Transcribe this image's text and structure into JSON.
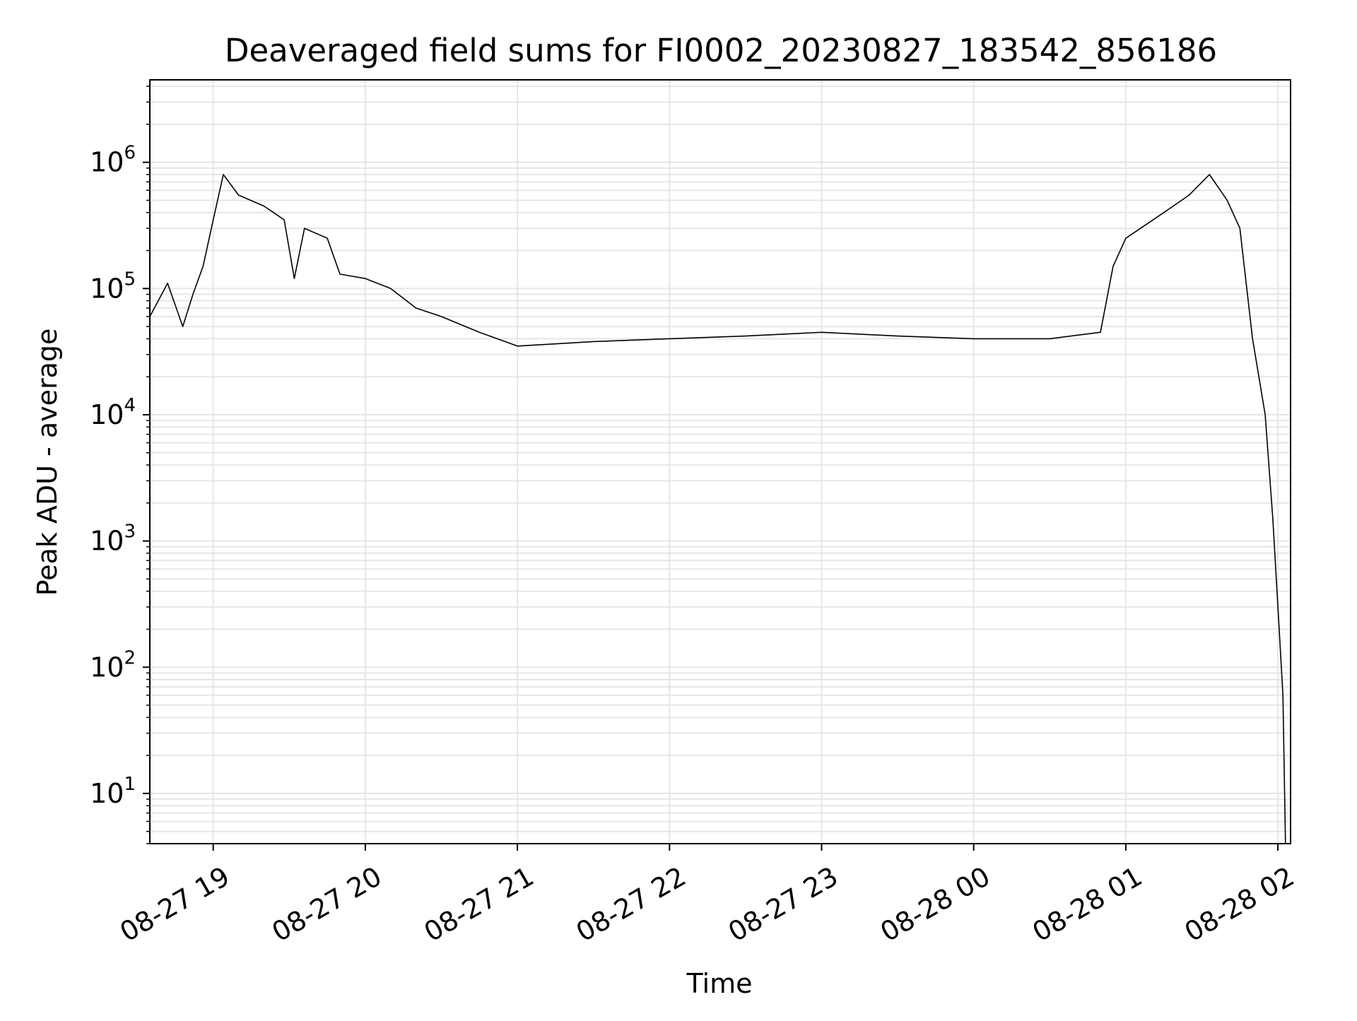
{
  "chart_data": {
    "type": "line",
    "title": "Deaveraged field sums for FI0002_20230827_183542_856186",
    "xlabel": "Time",
    "ylabel": "Peak ADU - average",
    "yscale": "log",
    "ylim": [
      4,
      4500000
    ],
    "xlim": [
      "08-27 18:35",
      "08-28 02:05"
    ],
    "grid": true,
    "line_color": "#000000",
    "grid_color": "#e6e6e6",
    "x_ticks": [
      {
        "label": "08-27 19",
        "value": "08-27 19:00"
      },
      {
        "label": "08-27 20",
        "value": "08-27 20:00"
      },
      {
        "label": "08-27 21",
        "value": "08-27 21:00"
      },
      {
        "label": "08-27 22",
        "value": "08-27 22:00"
      },
      {
        "label": "08-27 23",
        "value": "08-27 23:00"
      },
      {
        "label": "08-28 00",
        "value": "08-28 00:00"
      },
      {
        "label": "08-28 01",
        "value": "08-28 01:00"
      },
      {
        "label": "08-28 02",
        "value": "08-28 02:00"
      }
    ],
    "y_ticks": [
      {
        "base": "10",
        "exp": "1",
        "value": 10
      },
      {
        "base": "10",
        "exp": "2",
        "value": 100
      },
      {
        "base": "10",
        "exp": "3",
        "value": 1000
      },
      {
        "base": "10",
        "exp": "4",
        "value": 10000
      },
      {
        "base": "10",
        "exp": "5",
        "value": 100000
      },
      {
        "base": "10",
        "exp": "6",
        "value": 1000000
      }
    ],
    "series": [
      {
        "values": [
          [
            "08-27 18:35",
            60000
          ],
          [
            "08-27 18:42",
            110000
          ],
          [
            "08-27 18:48",
            50000
          ],
          [
            "08-27 18:52",
            90000
          ],
          [
            "08-27 18:56",
            150000
          ],
          [
            "08-27 19:00",
            350000
          ],
          [
            "08-27 19:04",
            800000
          ],
          [
            "08-27 19:10",
            550000
          ],
          [
            "08-27 19:20",
            450000
          ],
          [
            "08-27 19:28",
            350000
          ],
          [
            "08-27 19:32",
            120000
          ],
          [
            "08-27 19:36",
            300000
          ],
          [
            "08-27 19:45",
            250000
          ],
          [
            "08-27 19:50",
            130000
          ],
          [
            "08-27 20:00",
            120000
          ],
          [
            "08-27 20:10",
            100000
          ],
          [
            "08-27 20:20",
            70000
          ],
          [
            "08-27 20:30",
            60000
          ],
          [
            "08-27 20:45",
            45000
          ],
          [
            "08-27 21:00",
            35000
          ],
          [
            "08-27 21:30",
            38000
          ],
          [
            "08-27 22:00",
            40000
          ],
          [
            "08-27 22:30",
            42000
          ],
          [
            "08-27 23:00",
            45000
          ],
          [
            "08-27 23:30",
            42000
          ],
          [
            "08-28 00:00",
            40000
          ],
          [
            "08-28 00:30",
            40000
          ],
          [
            "08-28 00:50",
            45000
          ],
          [
            "08-28 00:55",
            150000
          ],
          [
            "08-28 01:00",
            250000
          ],
          [
            "08-28 01:15",
            400000
          ],
          [
            "08-28 01:25",
            550000
          ],
          [
            "08-28 01:33",
            800000
          ],
          [
            "08-28 01:40",
            500000
          ],
          [
            "08-28 01:45",
            300000
          ],
          [
            "08-28 01:50",
            40000
          ],
          [
            "08-28 01:55",
            10000
          ],
          [
            "08-28 01:58",
            1500
          ],
          [
            "08-28 02:00",
            300
          ],
          [
            "08-28 02:02",
            60
          ],
          [
            "08-28 02:03",
            4
          ]
        ]
      }
    ]
  }
}
